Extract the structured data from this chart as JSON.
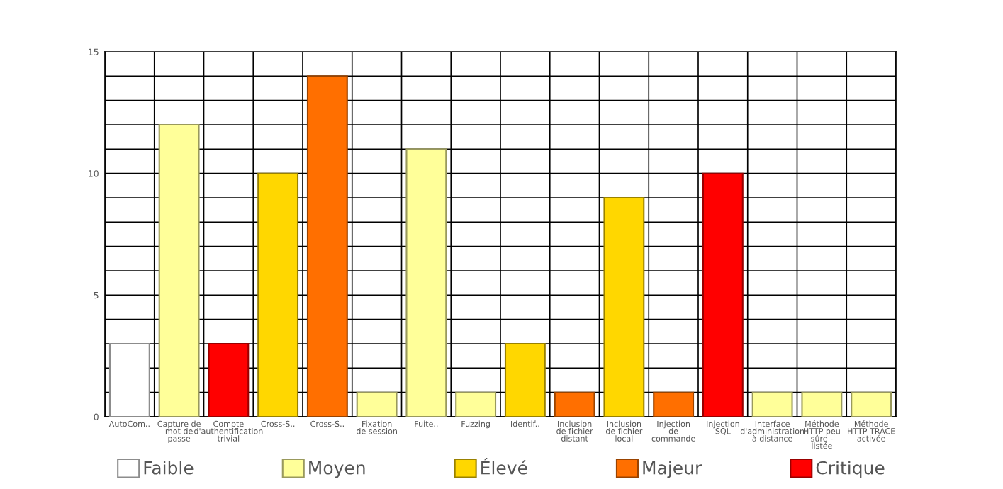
{
  "chart_data": {
    "type": "bar",
    "categories": [
      "AutoCom..",
      "Capture de mot de passe",
      "Compte d'authentification trivial",
      "Cross-S..",
      "Cross-S..",
      "Fixation de session",
      "Fuite..",
      "Fuzzing",
      "Identif..",
      "Inclusion de fichier distant",
      "Inclusion de fichier local",
      "Injection de commande",
      "Injection SQL",
      "Interface d'administration à distance",
      "Méthode HTTP peu sûre - listée",
      "Méthode HTTP TRACE activée"
    ],
    "series": [
      {
        "name": "Faible",
        "color": "#ffffff",
        "values": [
          3,
          null,
          null,
          null,
          null,
          null,
          null,
          null,
          null,
          null,
          null,
          null,
          null,
          null,
          null,
          null
        ]
      },
      {
        "name": "Moyen",
        "color": "#ffff99",
        "values": [
          null,
          12,
          null,
          null,
          null,
          1,
          11,
          1,
          null,
          null,
          null,
          null,
          null,
          1,
          1,
          1
        ]
      },
      {
        "name": "Élevé",
        "color": "#ffd700",
        "values": [
          null,
          null,
          null,
          10,
          null,
          null,
          null,
          null,
          3,
          null,
          9,
          null,
          null,
          null,
          null,
          null
        ]
      },
      {
        "name": "Majeur",
        "color": "#ff6f00",
        "values": [
          null,
          null,
          null,
          null,
          14,
          null,
          null,
          null,
          null,
          1,
          null,
          1,
          null,
          null,
          null,
          null
        ]
      },
      {
        "name": "Critique",
        "color": "#ff0000",
        "values": [
          null,
          null,
          3,
          null,
          null,
          null,
          null,
          null,
          null,
          null,
          null,
          null,
          10,
          null,
          null,
          null
        ]
      }
    ],
    "ylim": [
      0,
      15
    ],
    "yticks": [
      0,
      {
        "value": 1,
        "label": null
      },
      {
        "value": 2,
        "label": null
      },
      {
        "value": 3,
        "label": null
      },
      {
        "value": 4,
        "label": null
      },
      5,
      {
        "value": 6,
        "label": null
      },
      {
        "value": 7,
        "label": null
      },
      {
        "value": 8,
        "label": null
      },
      {
        "value": 9,
        "label": null
      },
      10,
      {
        "value": 11,
        "label": null
      },
      {
        "value": 12,
        "label": null
      },
      {
        "value": 13,
        "label": null
      },
      {
        "value": 14,
        "label": null
      },
      15
    ],
    "grid": true,
    "legend": "bottom"
  }
}
